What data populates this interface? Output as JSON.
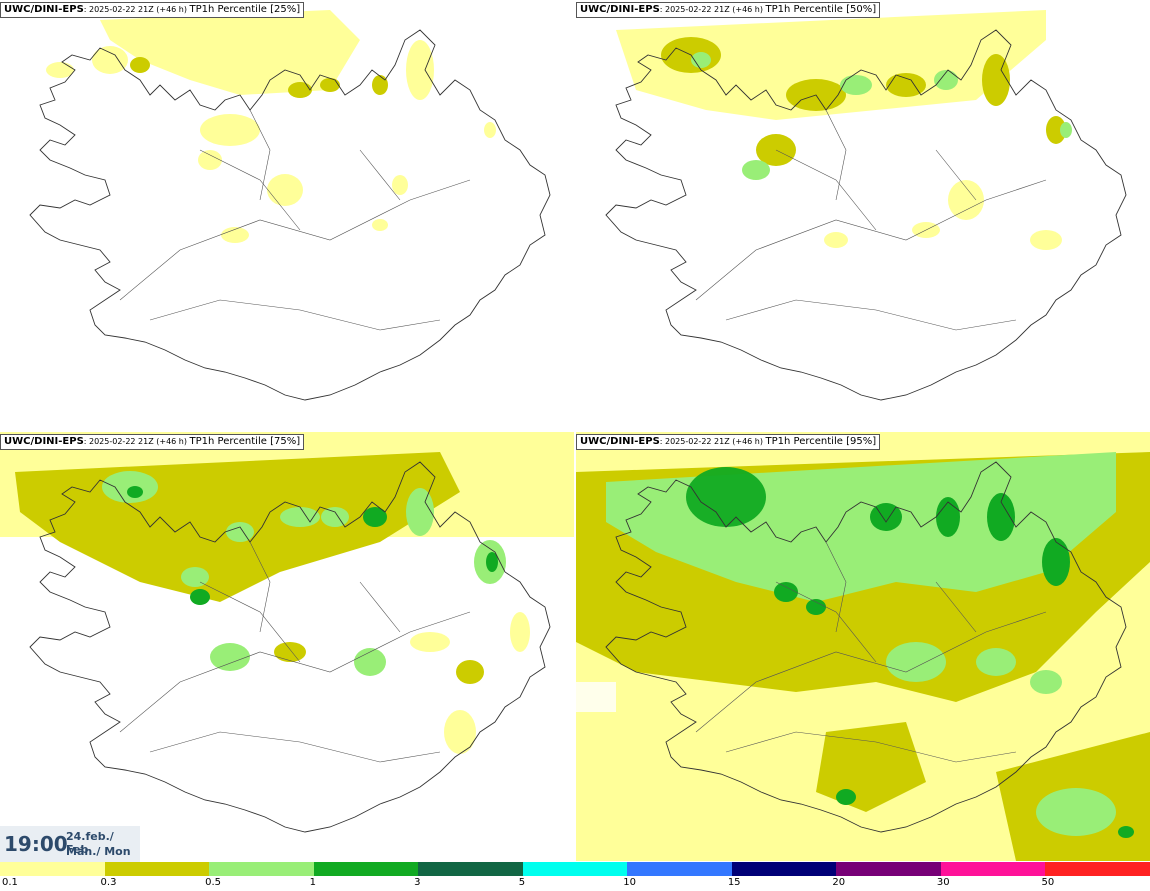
{
  "panels": [
    {
      "model": "UWC/DINI-EPS",
      "meta": ": 2025-02-22 21Z (+46 h) ",
      "field": "TP1h Percentile [25%]"
    },
    {
      "model": "UWC/DINI-EPS",
      "meta": ": 2025-02-22 21Z (+46 h) ",
      "field": "TP1h Percentile [50%]"
    },
    {
      "model": "UWC/DINI-EPS",
      "meta": ": 2025-02-22 21Z (+46 h) ",
      "field": "TP1h Percentile [75%]"
    },
    {
      "model": "UWC/DINI-EPS",
      "meta": ": 2025-02-22 21Z (+46 h) ",
      "field": "TP1h Percentile [95%]"
    }
  ],
  "time": {
    "hour": "19:00",
    "date": "24.feb./ Feb",
    "day": "Mán./ Mon"
  },
  "legend": {
    "colors": [
      "#ffff99",
      "#cccc00",
      "#99ee77",
      "#11aa22",
      "#116644",
      "#00ffee",
      "#3377ff",
      "#000077",
      "#770077",
      "#ff1199",
      "#ff2222"
    ],
    "labels": [
      "0.1",
      "0.3",
      "0.5",
      "1",
      "3",
      "5",
      "10",
      "15",
      "20",
      "30",
      "50"
    ]
  }
}
